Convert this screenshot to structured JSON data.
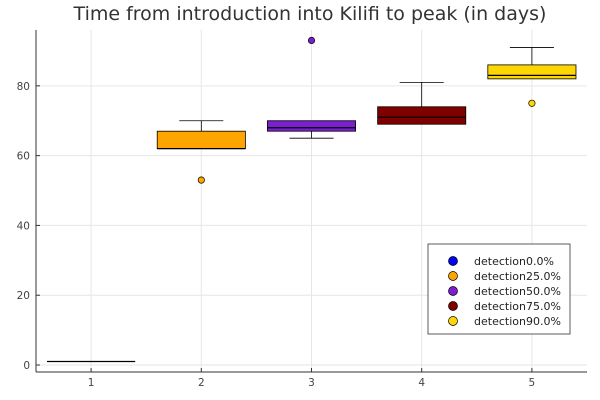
{
  "chart_data": {
    "type": "box",
    "title": "Time from introduction into Kilifi to peak (in days)",
    "xlabel": "",
    "ylabel": "",
    "x_ticks": [
      "1",
      "2",
      "3",
      "4",
      "5"
    ],
    "y_ticks": [
      "0",
      "20",
      "40",
      "60",
      "80"
    ],
    "xlim": [
      0.5,
      5.5
    ],
    "ylim": [
      -2,
      96
    ],
    "grid": true,
    "legend_position": "bottom-right",
    "series": [
      {
        "name": "detection0.0%",
        "x": 1,
        "color": "#0000ff",
        "whisker_low": 1,
        "q1": 1,
        "median": 1,
        "q3": 1,
        "whisker_high": 1,
        "outliers": []
      },
      {
        "name": "detection25.0%",
        "x": 2,
        "color": "#ffa500",
        "whisker_low": 62,
        "q1": 62,
        "median": 62,
        "q3": 67,
        "whisker_high": 70,
        "outliers": [
          53
        ]
      },
      {
        "name": "detection50.0%",
        "x": 3,
        "color": "#7b1fd0",
        "whisker_low": 65,
        "q1": 67,
        "median": 68,
        "q3": 70,
        "whisker_high": 70,
        "outliers": [
          93
        ]
      },
      {
        "name": "detection75.0%",
        "x": 4,
        "color": "#800000",
        "whisker_low": 69,
        "q1": 69,
        "median": 71,
        "q3": 74,
        "whisker_high": 81,
        "outliers": []
      },
      {
        "name": "detection90.0%",
        "x": 5,
        "color": "#ffd700",
        "whisker_low": 82,
        "q1": 82,
        "median": 83,
        "q3": 86,
        "whisker_high": 91,
        "outliers": [
          75
        ]
      }
    ]
  }
}
